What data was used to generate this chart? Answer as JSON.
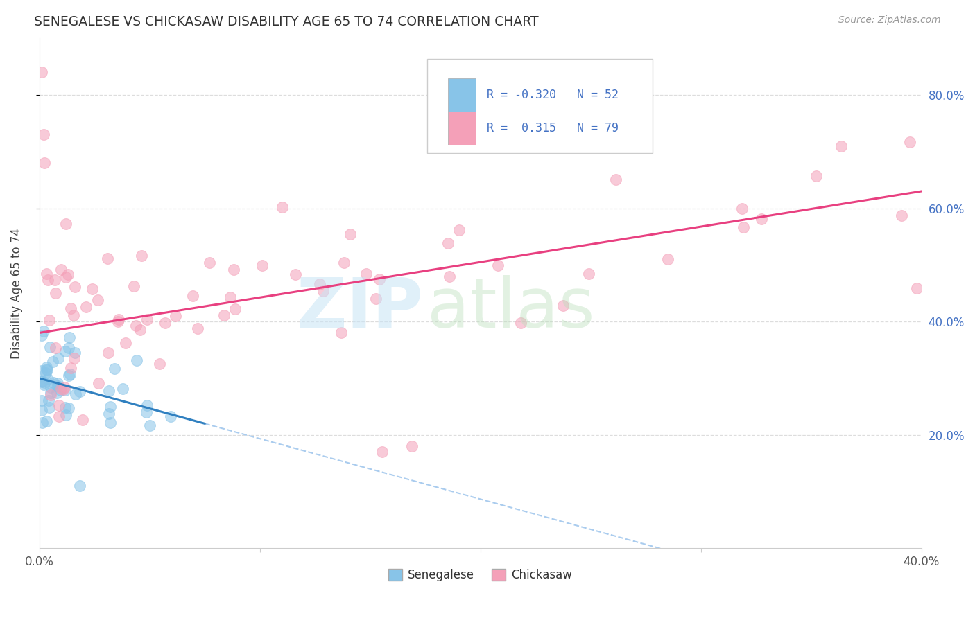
{
  "title": "SENEGALESE VS CHICKASAW DISABILITY AGE 65 TO 74 CORRELATION CHART",
  "source": "Source: ZipAtlas.com",
  "ylabel": "Disability Age 65 to 74",
  "xmin": 0.0,
  "xmax": 0.4,
  "ymin": 0.0,
  "ymax": 0.9,
  "yticks_right": [
    0.2,
    0.4,
    0.6,
    0.8
  ],
  "ytick_labels_right": [
    "20.0%",
    "40.0%",
    "60.0%",
    "80.0%"
  ],
  "xtick_left_label": "0.0%",
  "xtick_right_label": "40.0%",
  "legend_R_senegalese": "-0.320",
  "legend_N_senegalese": "52",
  "legend_R_chickasaw": "0.315",
  "legend_N_chickasaw": "79",
  "senegalese_color": "#88c4e8",
  "chickasaw_color": "#f4a0b8",
  "senegalese_line_color": "#3080c0",
  "chickasaw_line_color": "#e84080",
  "dashed_line_color": "#aaccee",
  "background_color": "#ffffff",
  "grid_color": "#dddddd",
  "legend_text_color": "#4472c4",
  "title_color": "#333333",
  "source_color": "#999999",
  "right_tick_color": "#4472c4"
}
